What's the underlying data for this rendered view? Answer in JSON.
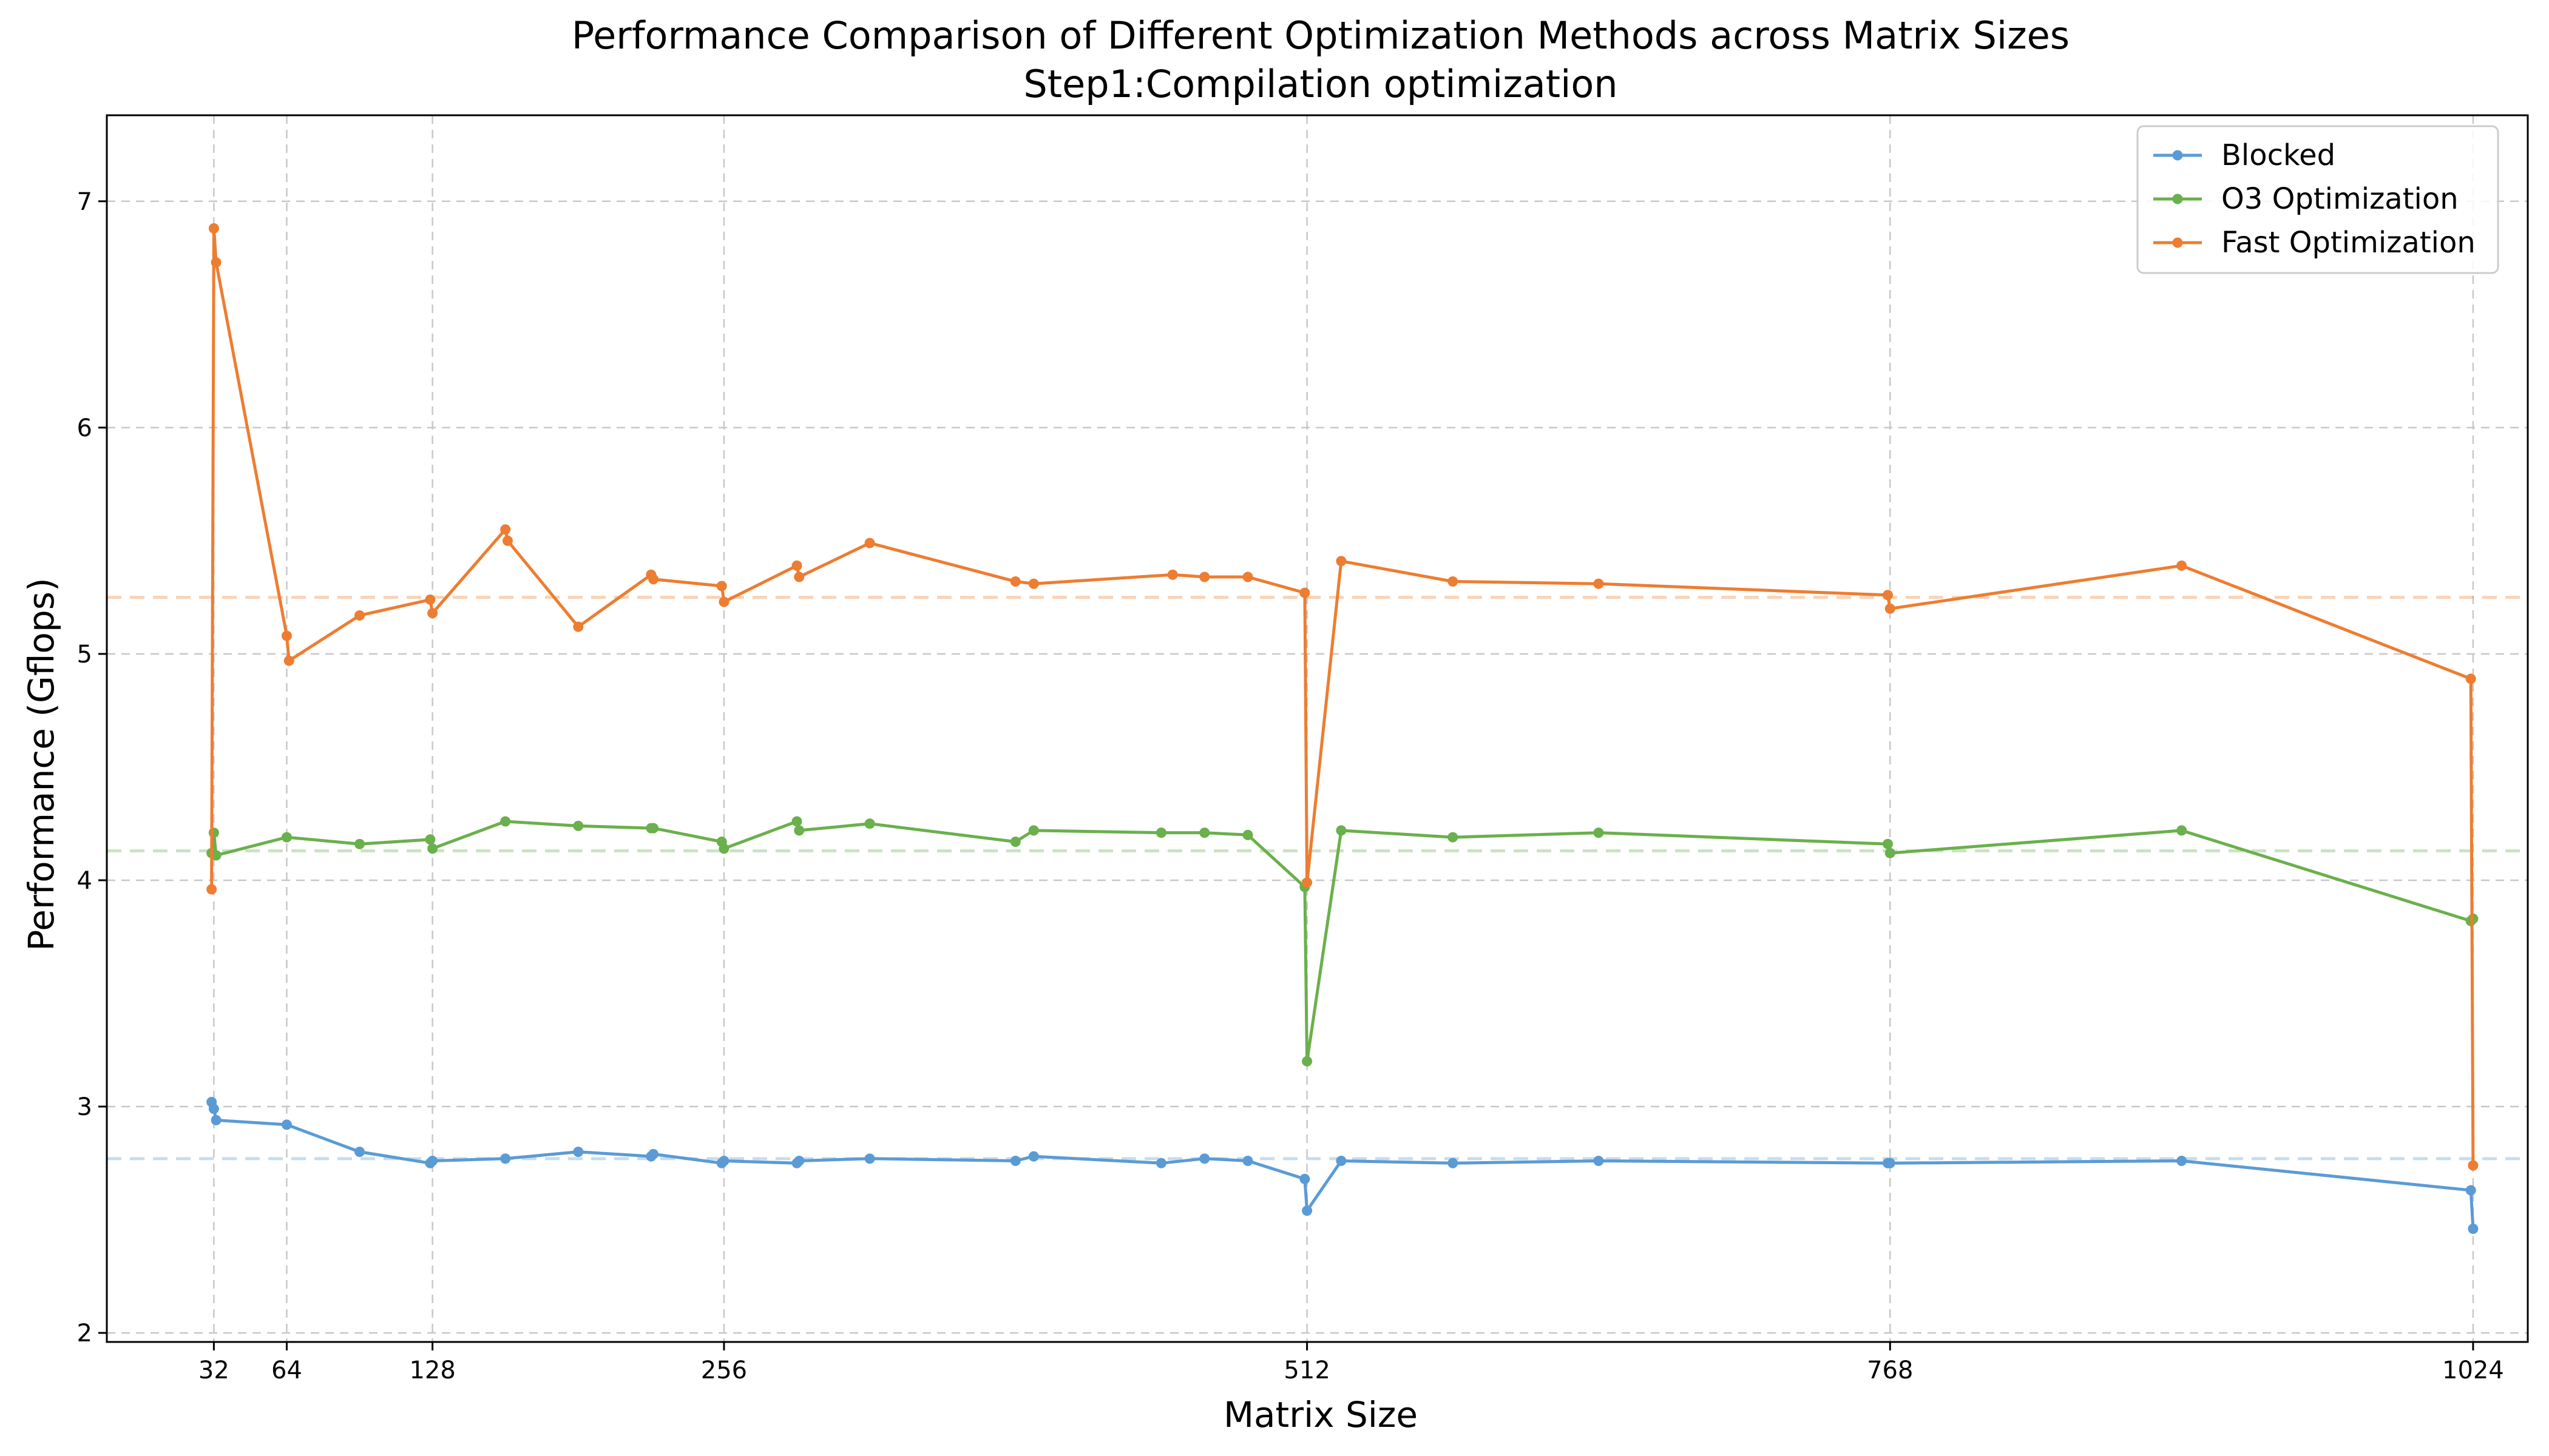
{
  "chart_data": {
    "type": "line",
    "title": "Performance Comparison of Different Optimization Methods across Matrix Sizes",
    "subtitle": "Step1:Compilation optimization",
    "xlabel": "Matrix Size",
    "ylabel": "Performance (Gflops)",
    "xlim": [
      -15,
      1048
    ],
    "ylim": [
      1.96,
      7.38
    ],
    "xticks": [
      32,
      64,
      128,
      256,
      512,
      768,
      1024
    ],
    "xtick_labels": [
      "32",
      "64",
      "128",
      "256",
      "512",
      "768",
      "1024"
    ],
    "yticks": [
      2,
      3,
      4,
      5,
      6,
      7
    ],
    "ytick_labels": [
      "2",
      "3",
      "4",
      "5",
      "6",
      "7"
    ],
    "grid": true,
    "legend_position": "top-right",
    "series": [
      {
        "name": "Blocked",
        "color": "#5b9bd5",
        "mean_line": 2.77,
        "x": [
          31,
          32,
          33,
          64,
          96,
          127,
          128,
          160,
          192,
          224,
          225,
          255,
          256,
          288,
          289,
          320,
          384,
          392,
          448,
          467,
          486,
          511,
          512,
          527,
          576,
          640,
          767,
          768,
          896,
          1023,
          1024
        ],
        "y": [
          3.02,
          2.99,
          2.94,
          2.92,
          2.8,
          2.75,
          2.76,
          2.77,
          2.8,
          2.78,
          2.79,
          2.75,
          2.76,
          2.75,
          2.76,
          2.77,
          2.76,
          2.78,
          2.75,
          2.77,
          2.76,
          2.68,
          2.54,
          2.76,
          2.75,
          2.76,
          2.75,
          2.75,
          2.76,
          2.63,
          2.46
        ]
      },
      {
        "name": "O3 Optimization",
        "color": "#6ab04c",
        "mean_line": 4.13,
        "x": [
          31,
          32,
          33,
          64,
          96,
          127,
          128,
          160,
          192,
          224,
          225,
          255,
          256,
          288,
          289,
          320,
          384,
          392,
          448,
          467,
          486,
          511,
          512,
          527,
          576,
          640,
          767,
          768,
          896,
          1023,
          1024
        ],
        "y": [
          4.12,
          4.21,
          4.11,
          4.19,
          4.16,
          4.18,
          4.14,
          4.26,
          4.24,
          4.23,
          4.23,
          4.17,
          4.14,
          4.26,
          4.22,
          4.25,
          4.17,
          4.22,
          4.21,
          4.21,
          4.2,
          3.97,
          3.2,
          4.22,
          4.19,
          4.21,
          4.16,
          4.12,
          4.22,
          3.82,
          3.83
        ]
      },
      {
        "name": "Fast Optimization",
        "color": "#ed7d31",
        "mean_line": 5.25,
        "x": [
          31,
          32,
          33,
          64,
          65,
          96,
          127,
          128,
          160,
          161,
          192,
          224,
          225,
          255,
          256,
          288,
          289,
          320,
          384,
          392,
          453,
          467,
          486,
          511,
          512,
          527,
          576,
          640,
          767,
          768,
          896,
          1023,
          1024
        ],
        "y": [
          3.96,
          6.88,
          6.73,
          5.08,
          4.97,
          5.17,
          5.24,
          5.18,
          5.55,
          5.5,
          5.12,
          5.35,
          5.33,
          5.3,
          5.23,
          5.39,
          5.34,
          5.49,
          5.32,
          5.31,
          5.35,
          5.34,
          5.34,
          5.27,
          3.99,
          5.41,
          5.32,
          5.31,
          5.26,
          5.2,
          5.39,
          4.89,
          2.74
        ]
      }
    ]
  }
}
